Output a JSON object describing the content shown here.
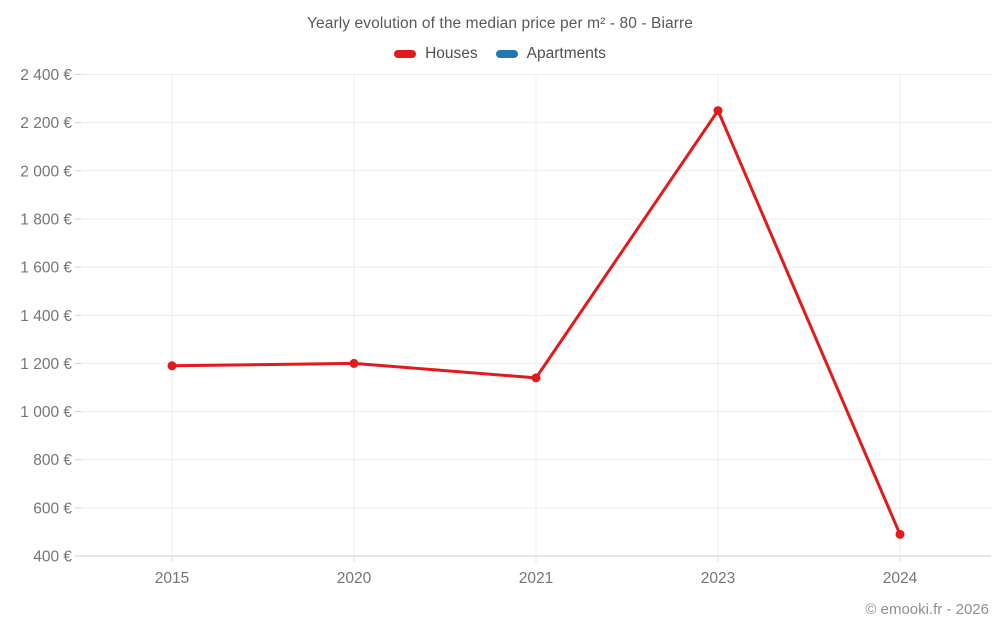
{
  "header": {
    "title": "Yearly evolution of the median price per m² - 80 - Biarre"
  },
  "chart_data": {
    "type": "line",
    "title": "Yearly evolution of the median price per m² - 80 - Biarre",
    "categories": [
      "2015",
      "2020",
      "2021",
      "2023",
      "2024"
    ],
    "series": [
      {
        "name": "Houses",
        "color": "#e31a1c",
        "values": [
          1190,
          1200,
          1140,
          2250,
          490
        ]
      },
      {
        "name": "Apartments",
        "color": "#1f78b4",
        "values": []
      }
    ],
    "xlabel": "",
    "ylabel": "",
    "ylim": [
      400,
      2400
    ],
    "ytick_step": 200,
    "ytick_labels": [
      "400 €",
      "600 €",
      "800 €",
      "1 000 €",
      "1 200 €",
      "1 400 €",
      "1 600 €",
      "1 800 €",
      "2 000 €",
      "2 200 €",
      "2 400 €"
    ],
    "grid": true,
    "legend_position": "top",
    "currency_suffix": "€"
  },
  "footer": {
    "copyright": "© emooki.fr - 2026"
  },
  "theme": {
    "axis_text_color": "#757575",
    "title_color": "#595959",
    "legend_text_color": "#4f4f4f",
    "footer_text_color": "#8f8f8f",
    "gridline_color": "#ececec",
    "axis_line_color": "#cfcfcf",
    "background": "#ffffff"
  }
}
